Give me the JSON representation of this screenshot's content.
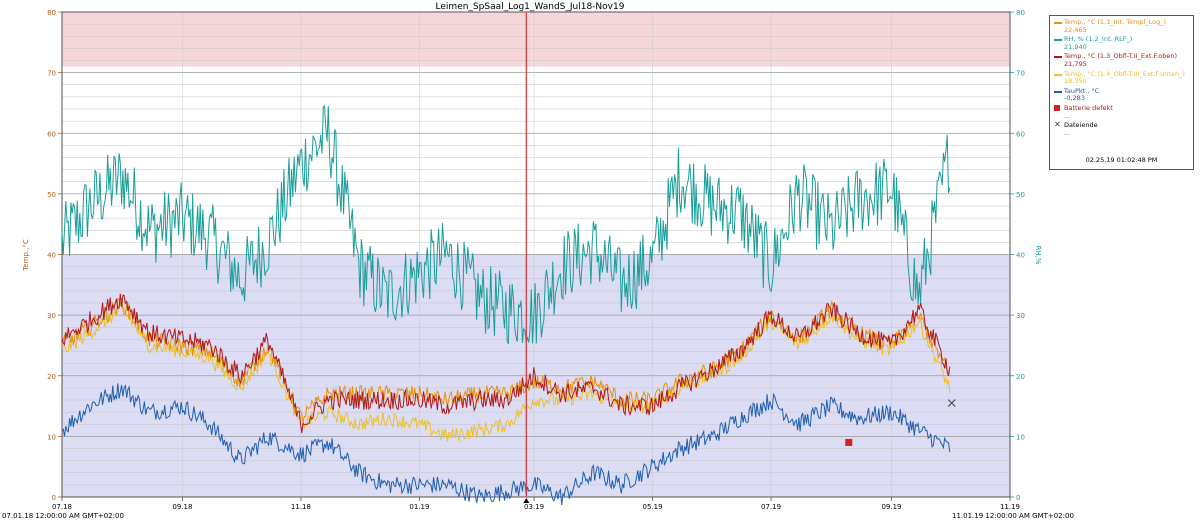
{
  "chart_data": {
    "type": "line",
    "title": "Leimen_SpSaal_Log1_WandS_Jul18-Nov19",
    "ylabel": "Temp.,°C",
    "y2label": "RH,%",
    "ylim": [
      0,
      80
    ],
    "y2lim": [
      0,
      80
    ],
    "yticks": [
      0,
      10,
      20,
      30,
      40,
      50,
      60,
      70,
      80
    ],
    "xlim": [
      "2018-07-01",
      "2019-11-01"
    ],
    "xtick_labels": [
      "07.18",
      "09.18",
      "11.18",
      "01.19",
      "03.19",
      "05.19",
      "07.19",
      "09.19",
      "11.19"
    ],
    "xticks": [
      "2018-07-01",
      "2018-09-01",
      "2018-11-01",
      "2019-01-01",
      "2019-03-01",
      "2019-05-01",
      "2019-07-01",
      "2019-09-01",
      "2019-11-01"
    ],
    "x_start_label": "07.01.18 12:00:00 AM GMT+02:00",
    "x_end_label": "11.01.19 12:00:00 AM GMT+02:00",
    "grid": true,
    "legend_position": "right",
    "bands": [
      {
        "from": 71,
        "to": 80,
        "color": "#f5d7d9"
      },
      {
        "from": 0,
        "to": 40,
        "color": "#dcdcf5"
      }
    ],
    "cursor": {
      "x": "2019-02-25",
      "label": "02.25.19 01:02:48 PM",
      "color": "#e03030"
    },
    "series": [
      {
        "name": "Temp., °C (1.1_Int. Templ_Log_)",
        "value_label": "22,465",
        "color": "#e8900a",
        "axis": "left",
        "x": [
          "2018-07-01",
          "2018-07-15",
          "2018-08-01",
          "2018-08-15",
          "2018-09-01",
          "2018-09-15",
          "2018-10-01",
          "2018-10-15",
          "2018-11-01",
          "2018-11-15",
          "2018-12-01",
          "2018-12-15",
          "2019-01-01",
          "2019-01-15",
          "2019-02-01",
          "2019-02-15",
          "2019-03-01",
          "2019-03-15",
          "2019-04-01",
          "2019-04-15",
          "2019-05-01",
          "2019-05-15",
          "2019-06-01",
          "2019-06-15",
          "2019-07-01",
          "2019-07-15",
          "2019-08-01",
          "2019-08-15",
          "2019-09-01",
          "2019-09-15",
          "2019-10-01"
        ],
        "y": [
          25,
          28,
          32,
          26,
          25,
          24,
          19,
          25,
          13,
          17,
          17,
          17,
          17,
          16,
          17,
          17,
          19,
          18,
          19,
          16,
          16,
          19,
          21,
          24,
          30,
          26,
          31,
          27,
          25,
          30,
          20
        ]
      },
      {
        "name": "RH, % (1.2_Int. RLF_)",
        "value_label": "21,940",
        "color": "#1a9e9a",
        "axis": "right",
        "x": [
          "2018-07-01",
          "2018-07-15",
          "2018-08-01",
          "2018-08-15",
          "2018-09-01",
          "2018-09-15",
          "2018-10-01",
          "2018-10-15",
          "2018-11-01",
          "2018-11-15",
          "2018-12-01",
          "2018-12-15",
          "2019-01-01",
          "2019-01-15",
          "2019-02-01",
          "2019-02-15",
          "2019-03-01",
          "2019-03-15",
          "2019-04-01",
          "2019-04-15",
          "2019-05-01",
          "2019-05-15",
          "2019-06-01",
          "2019-06-15",
          "2019-07-01",
          "2019-07-15",
          "2019-08-01",
          "2019-08-15",
          "2019-09-01",
          "2019-09-15",
          "2019-10-01"
        ],
        "y": [
          42,
          48,
          53,
          44,
          46,
          43,
          36,
          42,
          55,
          60,
          38,
          33,
          37,
          40,
          33,
          31,
          30,
          38,
          41,
          35,
          39,
          53,
          48,
          47,
          38,
          50,
          44,
          49,
          51,
          33,
          57
        ]
      },
      {
        "name": "Temp., °C (1.3_Obfl-T.II_Ext.F.oben)",
        "value_label": "21,795",
        "color": "#b01818",
        "axis": "left",
        "x": [
          "2018-07-01",
          "2018-07-15",
          "2018-08-01",
          "2018-08-15",
          "2018-09-01",
          "2018-09-15",
          "2018-10-01",
          "2018-10-15",
          "2018-11-01",
          "2018-11-15",
          "2018-12-01",
          "2018-12-15",
          "2019-01-01",
          "2019-01-15",
          "2019-02-01",
          "2019-02-15",
          "2019-03-01",
          "2019-03-15",
          "2019-04-01",
          "2019-04-15",
          "2019-05-01",
          "2019-05-15",
          "2019-06-01",
          "2019-06-15",
          "2019-07-01",
          "2019-07-15",
          "2019-08-01",
          "2019-08-15",
          "2019-09-01",
          "2019-09-15",
          "2019-10-01"
        ],
        "y": [
          26,
          29,
          33,
          27,
          26,
          25,
          20,
          26,
          12,
          16,
          16,
          16,
          16,
          15,
          16,
          16,
          20,
          17,
          18,
          15,
          15,
          18,
          21,
          24,
          30,
          26,
          31,
          27,
          25,
          31,
          21
        ]
      },
      {
        "name": "Temp., °C (1.4_Obfl-T.III_Ext.F.unten_)",
        "value_label": "18,350",
        "color": "#f0c020",
        "axis": "left",
        "x": [
          "2018-07-01",
          "2018-07-15",
          "2018-08-01",
          "2018-08-15",
          "2018-09-01",
          "2018-09-15",
          "2018-10-01",
          "2018-10-15",
          "2018-11-01",
          "2018-11-15",
          "2018-12-01",
          "2018-12-15",
          "2019-01-01",
          "2019-01-15",
          "2019-02-01",
          "2019-02-15",
          "2019-03-01",
          "2019-03-15",
          "2019-04-01",
          "2019-04-15",
          "2019-05-01",
          "2019-05-15",
          "2019-06-01",
          "2019-06-15",
          "2019-07-01",
          "2019-07-15",
          "2019-08-01",
          "2019-08-15",
          "2019-09-01",
          "2019-09-15",
          "2019-10-01"
        ],
        "y": [
          24,
          27,
          31,
          25,
          24,
          23,
          18,
          24,
          12,
          14,
          12,
          13,
          12,
          10,
          11,
          12,
          16,
          16,
          17,
          15,
          15,
          18,
          20,
          23,
          29,
          25,
          30,
          26,
          24,
          29,
          18
        ]
      },
      {
        "name": "TauPkt., °C",
        "value_label": "-0,283",
        "color": "#1f5fb0",
        "axis": "left",
        "x": [
          "2018-07-01",
          "2018-07-15",
          "2018-08-01",
          "2018-08-15",
          "2018-09-01",
          "2018-09-15",
          "2018-10-01",
          "2018-10-15",
          "2018-11-01",
          "2018-11-15",
          "2018-12-01",
          "2018-12-15",
          "2019-01-01",
          "2019-01-15",
          "2019-02-01",
          "2019-02-15",
          "2019-03-01",
          "2019-03-15",
          "2019-04-01",
          "2019-04-15",
          "2019-05-01",
          "2019-05-15",
          "2019-06-01",
          "2019-06-15",
          "2019-07-01",
          "2019-07-15",
          "2019-08-01",
          "2019-08-15",
          "2019-09-01",
          "2019-09-15",
          "2019-10-01"
        ],
        "y": [
          11,
          15,
          18,
          14,
          15,
          12,
          6,
          10,
          7,
          9,
          4,
          2,
          2,
          2,
          0,
          1,
          2,
          0,
          4,
          2,
          5,
          8,
          10,
          13,
          16,
          12,
          15,
          13,
          14,
          11,
          8
        ]
      }
    ],
    "markers": [
      {
        "name": "Batterie defekt",
        "x": "2019-08-10",
        "y": 9,
        "color": "#d42020",
        "shape": "square"
      },
      {
        "name": "Dateiende",
        "x": "2019-10-02",
        "y": 15.5,
        "color": "#555555",
        "shape": "cross"
      }
    ],
    "legend_dots": "..."
  }
}
